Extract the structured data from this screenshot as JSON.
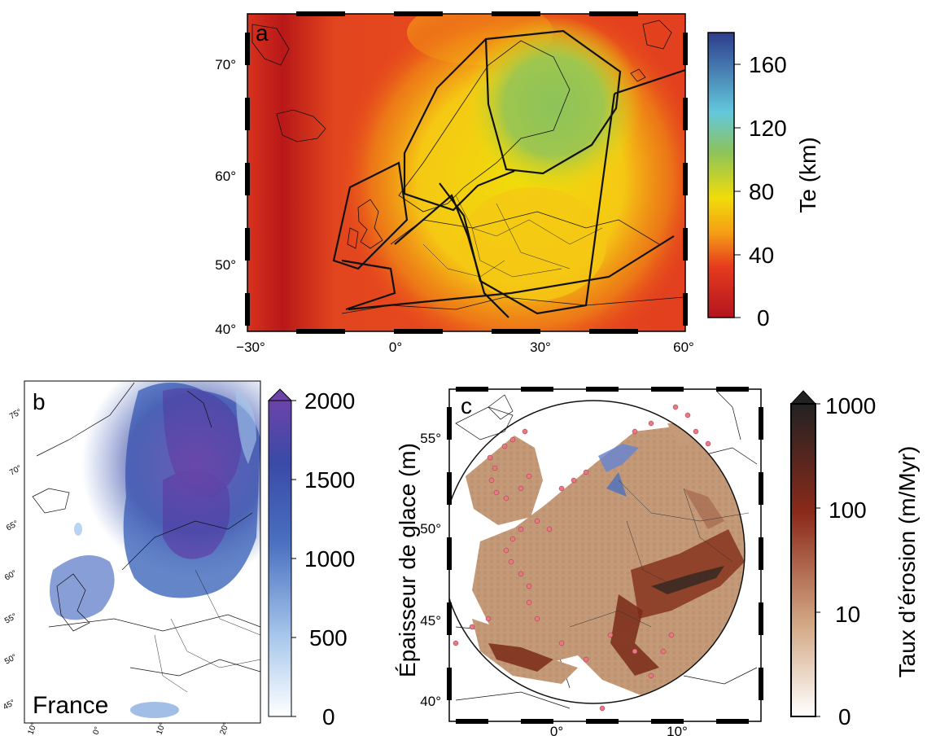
{
  "panel_a": {
    "letter": "a",
    "lat_ticks": [
      "70°",
      "60°",
      "50°",
      "40°"
    ],
    "lon_ticks": [
      "−30°",
      "0°",
      "30°",
      "60°"
    ],
    "colorbar": {
      "label": "Te (km)",
      "ticks": [
        "160",
        "120",
        "80",
        "40",
        "0"
      ],
      "range": [
        0,
        180
      ],
      "colors": [
        "#b4141e",
        "#e63c1e",
        "#f5a014",
        "#f0dc0a",
        "#8cc35a",
        "#64c8dc",
        "#2d3c8c"
      ]
    }
  },
  "panel_b": {
    "letter": "b",
    "place": "France",
    "lat_ticks": [
      "75°",
      "70°",
      "65°",
      "60°",
      "55°",
      "50°",
      "45°"
    ],
    "lon_ticks": [
      "10°",
      "0°",
      "10°",
      "20°"
    ],
    "colorbar": {
      "label": "Épaisseur de glace (m)",
      "ticks": [
        "2000",
        "1500",
        "1000",
        "500",
        "0"
      ],
      "range": [
        0,
        2000
      ],
      "colors": [
        "#ffffff",
        "#a8c8ec",
        "#4a70c0",
        "#3a4aa8",
        "#6a44a8"
      ]
    }
  },
  "panel_c": {
    "letter": "c",
    "lat_ticks": [
      "55°",
      "50°",
      "45°",
      "40°"
    ],
    "lon_ticks": [
      "0°",
      "10°"
    ],
    "colorbar": {
      "label": "Taux d’érosion (m/Myr)",
      "ticks": [
        "1000",
        "100",
        "10",
        "0"
      ],
      "scale": "log",
      "colors": [
        "#ffffff",
        "#d2a682",
        "#8b2a1a",
        "#222222"
      ]
    }
  }
}
